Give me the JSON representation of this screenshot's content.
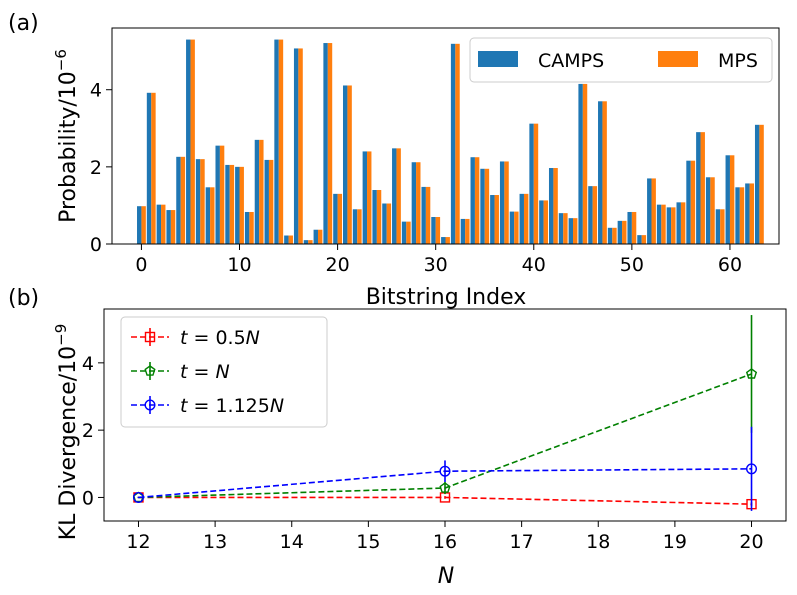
{
  "chart_data": [
    {
      "type": "bar",
      "panel_label": "(a)",
      "xlabel": "Bitstring Index",
      "ylabel_base": "Probability/10",
      "ylabel_exp": "−6",
      "xlim": [
        -3,
        65
      ],
      "ylim": [
        0,
        5.6
      ],
      "xticks": [
        0,
        10,
        20,
        30,
        40,
        50,
        60
      ],
      "yticks": [
        0,
        2,
        4
      ],
      "legend_position": "top-right",
      "x": [
        0,
        1,
        2,
        3,
        4,
        5,
        6,
        7,
        8,
        9,
        10,
        11,
        12,
        13,
        14,
        15,
        16,
        17,
        18,
        19,
        20,
        21,
        22,
        23,
        24,
        25,
        26,
        27,
        28,
        29,
        30,
        31,
        32,
        33,
        34,
        35,
        36,
        37,
        38,
        39,
        40,
        41,
        42,
        43,
        44,
        45,
        46,
        47,
        48,
        49,
        50,
        51,
        52,
        53,
        54,
        55,
        56,
        57,
        58,
        59,
        60,
        61,
        62,
        63
      ],
      "series": [
        {
          "name": "CAMPS",
          "color": "#1f77b4",
          "values": [
            0.98,
            3.92,
            1.02,
            0.88,
            2.26,
            5.3,
            2.2,
            1.47,
            2.55,
            2.05,
            2.0,
            0.83,
            2.7,
            2.18,
            5.3,
            0.22,
            5.07,
            0.1,
            0.37,
            5.21,
            1.3,
            4.11,
            0.9,
            2.4,
            1.4,
            1.05,
            2.48,
            0.58,
            2.12,
            1.48,
            0.7,
            0.18,
            5.19,
            0.65,
            2.25,
            1.95,
            1.27,
            2.14,
            0.84,
            1.3,
            3.12,
            1.13,
            1.97,
            0.8,
            0.67,
            4.15,
            1.5,
            3.7,
            0.42,
            0.6,
            0.83,
            0.23,
            1.7,
            1.02,
            0.95,
            1.08,
            2.16,
            2.9,
            1.73,
            0.9,
            2.3,
            1.47,
            1.57,
            3.09
          ]
        },
        {
          "name": "MPS",
          "color": "#ff7f0e",
          "values": [
            0.98,
            3.92,
            1.02,
            0.88,
            2.26,
            5.3,
            2.2,
            1.47,
            2.55,
            2.05,
            2.0,
            0.83,
            2.7,
            2.18,
            5.3,
            0.22,
            5.07,
            0.1,
            0.37,
            5.21,
            1.3,
            4.11,
            0.9,
            2.4,
            1.4,
            1.05,
            2.48,
            0.58,
            2.12,
            1.48,
            0.7,
            0.18,
            5.19,
            0.65,
            2.25,
            1.95,
            1.27,
            2.14,
            0.84,
            1.3,
            3.12,
            1.13,
            1.97,
            0.8,
            0.67,
            4.15,
            1.5,
            3.7,
            0.42,
            0.6,
            0.83,
            0.23,
            1.7,
            1.02,
            0.95,
            1.08,
            2.16,
            2.9,
            1.73,
            0.9,
            2.3,
            1.47,
            1.57,
            3.09
          ]
        }
      ]
    },
    {
      "type": "line",
      "panel_label": "(b)",
      "xlabel": "N",
      "ylabel_base": "KL Divergence/10",
      "ylabel_exp": "−9",
      "xlim": [
        11.55,
        20.45
      ],
      "ylim": [
        -0.7,
        5.6
      ],
      "xticks": [
        12,
        13,
        14,
        15,
        16,
        17,
        18,
        19,
        20
      ],
      "yticks": [
        0,
        2,
        4
      ],
      "legend_position": "top-left",
      "x": [
        12,
        16,
        20
      ],
      "series": [
        {
          "name_prefix": "t",
          "name_eq": " = 0.5",
          "name_suffix": "N",
          "color": "#ff0000",
          "marker": "square",
          "values": [
            0.0,
            0.0,
            -0.2
          ],
          "errors": [
            0.02,
            0.04,
            0.06
          ]
        },
        {
          "name_prefix": "t",
          "name_eq": " = ",
          "name_suffix": "N",
          "color": "#008000",
          "marker": "pentagon",
          "values": [
            0.0,
            0.28,
            3.67
          ],
          "errors": [
            0.02,
            0.18,
            1.75
          ]
        },
        {
          "name_prefix": "t",
          "name_eq": " = 1.125",
          "name_suffix": "N",
          "color": "#0000ff",
          "marker": "circle",
          "values": [
            0.0,
            0.78,
            0.85
          ],
          "errors": [
            0.02,
            0.32,
            1.25
          ]
        }
      ]
    }
  ]
}
